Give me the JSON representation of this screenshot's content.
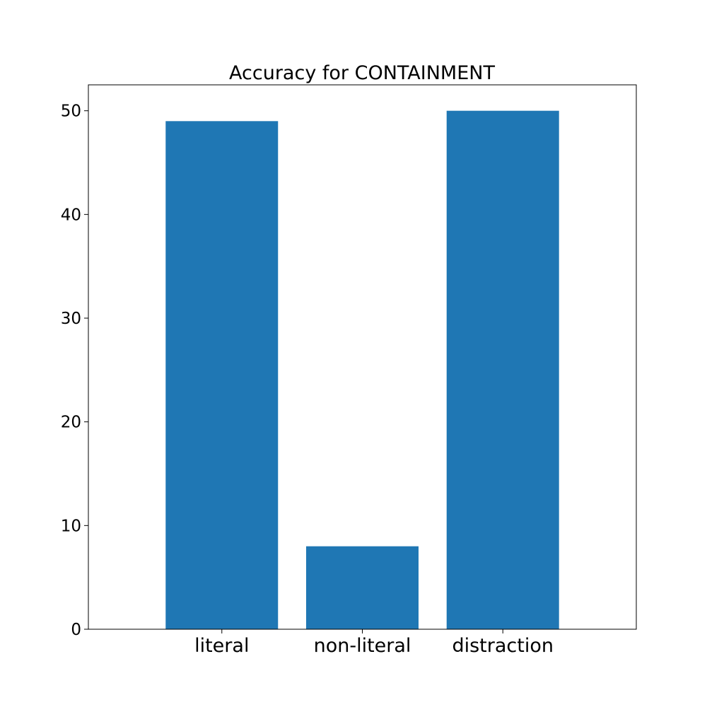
{
  "chart_data": {
    "type": "bar",
    "title": "Accuracy for CONTAINMENT",
    "xlabel": "",
    "ylabel": "",
    "categories": [
      "literal",
      "non-literal",
      "distraction"
    ],
    "values": [
      49,
      8,
      50
    ],
    "ylim": [
      0,
      52.5
    ],
    "yticks": [
      0,
      10,
      20,
      30,
      40,
      50
    ],
    "bar_color": "#1f77b4",
    "grid": false,
    "legend": "none"
  }
}
